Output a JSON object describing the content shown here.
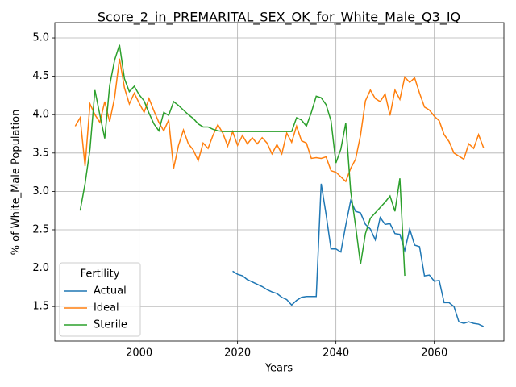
{
  "chart_data": {
    "type": "line",
    "title": "Score_2_in_PREMARITAL_SEX_OK_for_White_Male_Q3_IQ",
    "xlabel": "Years",
    "ylabel": "% of White_Male Population",
    "legend_title": "Fertility",
    "legend": "lower left",
    "grid": true,
    "x": [
      1987,
      1988,
      1989,
      1990,
      1991,
      1992,
      1993,
      1994,
      1995,
      1996,
      1997,
      1998,
      1999,
      2000,
      2001,
      2002,
      2003,
      2004,
      2005,
      2006,
      2007,
      2008,
      2009,
      2010,
      2011,
      2012,
      2013,
      2014,
      2015,
      2016,
      2017,
      2018,
      2019,
      2020,
      2021,
      2022,
      2023,
      2024,
      2025,
      2026,
      2027,
      2028,
      2029,
      2030,
      2031,
      2032,
      2033,
      2034,
      2035,
      2036,
      2037,
      2038,
      2039,
      2040,
      2041,
      2042,
      2043,
      2044,
      2045,
      2046,
      2047,
      2048,
      2049,
      2050,
      2051,
      2052,
      2053,
      2054,
      2055,
      2056,
      2057,
      2058,
      2059,
      2060,
      2061,
      2062,
      2063,
      2064,
      2065,
      2066,
      2067,
      2068,
      2069,
      2070
    ],
    "series": [
      {
        "name": "Actual",
        "color": "#1f77b4",
        "values": [
          null,
          null,
          null,
          null,
          null,
          null,
          null,
          null,
          null,
          null,
          null,
          null,
          null,
          null,
          null,
          null,
          null,
          null,
          null,
          null,
          null,
          null,
          null,
          null,
          null,
          null,
          null,
          null,
          null,
          null,
          null,
          null,
          1.96,
          1.92,
          1.9,
          1.85,
          1.82,
          1.79,
          1.76,
          1.72,
          1.69,
          1.67,
          1.62,
          1.59,
          1.52,
          1.58,
          1.62,
          1.63,
          1.63,
          1.63,
          3.1,
          2.7,
          2.25,
          2.25,
          2.21,
          2.56,
          2.88,
          2.74,
          2.72,
          2.57,
          2.51,
          2.37,
          2.66,
          2.57,
          2.58,
          2.45,
          2.44,
          2.23,
          2.51,
          2.3,
          2.28,
          1.9,
          1.91,
          1.83,
          1.84,
          1.55,
          1.55,
          1.5,
          1.3,
          1.28,
          1.3,
          1.28,
          1.27,
          1.24
        ]
      },
      {
        "name": "Ideal",
        "color": "#ff7f0e",
        "values": [
          3.85,
          3.96,
          3.33,
          4.14,
          4.0,
          3.9,
          4.17,
          3.91,
          4.22,
          4.73,
          4.35,
          4.14,
          4.28,
          4.15,
          4.03,
          4.21,
          4.05,
          3.9,
          3.79,
          3.93,
          3.3,
          3.6,
          3.8,
          3.62,
          3.54,
          3.4,
          3.63,
          3.56,
          3.73,
          3.87,
          3.76,
          3.59,
          3.78,
          3.6,
          3.73,
          3.62,
          3.7,
          3.62,
          3.7,
          3.63,
          3.49,
          3.61,
          3.49,
          3.76,
          3.64,
          3.85,
          3.66,
          3.63,
          3.43,
          3.44,
          3.43,
          3.45,
          3.27,
          3.25,
          3.19,
          3.13,
          3.3,
          3.42,
          3.73,
          4.18,
          4.32,
          4.21,
          4.17,
          4.27,
          3.99,
          4.32,
          4.2,
          4.49,
          4.42,
          4.48,
          4.28,
          4.1,
          4.06,
          3.98,
          3.92,
          3.74,
          3.65,
          3.5,
          3.46,
          3.42,
          3.62,
          3.56,
          3.74,
          3.57
        ]
      },
      {
        "name": "Sterile",
        "color": "#2ca02c",
        "values": [
          null,
          2.75,
          3.1,
          3.55,
          4.32,
          4.0,
          3.69,
          4.38,
          4.71,
          4.91,
          4.47,
          4.3,
          4.37,
          4.26,
          4.18,
          4.02,
          3.88,
          3.79,
          4.03,
          3.99,
          4.17,
          4.12,
          4.06,
          4.0,
          3.95,
          3.88,
          3.84,
          3.84,
          3.81,
          3.79,
          3.78,
          3.78,
          3.78,
          3.78,
          3.78,
          3.78,
          3.78,
          3.78,
          3.78,
          3.78,
          3.78,
          3.78,
          3.78,
          3.78,
          3.78,
          3.96,
          3.93,
          3.85,
          4.03,
          4.24,
          4.22,
          4.13,
          3.92,
          3.37,
          3.55,
          3.89,
          3.0,
          2.55,
          2.05,
          2.45,
          2.65,
          2.72,
          2.79,
          2.86,
          2.94,
          2.74,
          3.17,
          1.9,
          null,
          null,
          null,
          null,
          null,
          null,
          null,
          null,
          null,
          null,
          null,
          null,
          null,
          null,
          null,
          null
        ]
      }
    ],
    "xlim": [
      1982.85,
      2074.15
    ],
    "xticks": [
      2000,
      2020,
      2040,
      2060
    ],
    "ylim": [
      1.05,
      5.2
    ],
    "yticks": [
      1.5,
      {
        "value": 2,
        "label": "2.0"
      },
      2.5,
      {
        "value": 3,
        "label": "3.0"
      },
      3.5,
      {
        "value": 4,
        "label": "4.0"
      },
      4.5,
      {
        "value": 5,
        "label": "5.0"
      }
    ]
  }
}
